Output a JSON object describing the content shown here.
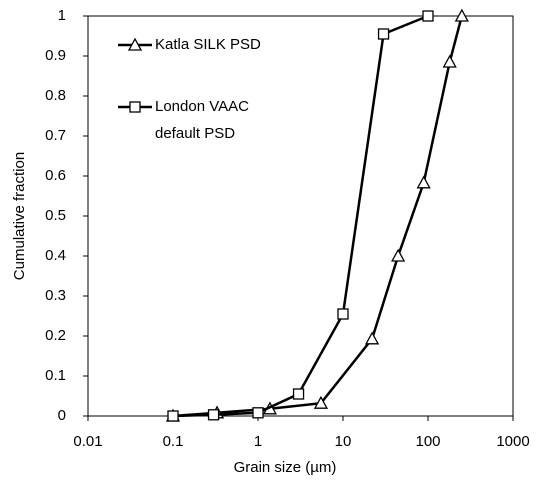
{
  "chart_data": {
    "type": "line",
    "x_label": "Grain size (µm)",
    "y_label": "Cumulative fraction",
    "xscale": "log",
    "xlim": [
      0.01,
      1000
    ],
    "xticks": [
      0.01,
      0.1,
      1,
      10,
      100,
      1000
    ],
    "ylim": [
      0,
      1
    ],
    "yticks": [
      0,
      0.1,
      0.2,
      0.3,
      0.4,
      0.5,
      0.6,
      0.7,
      0.8,
      0.9,
      1
    ],
    "grid": false,
    "legend": "upper left",
    "series": [
      {
        "name": "Katla SILK PSD",
        "color": "#000000",
        "marker": "triangle",
        "x": [
          0.1,
          0.33,
          1.38,
          5.5,
          22,
          44.5,
          89,
          180,
          250
        ],
        "values": [
          0,
          0.008,
          0.018,
          0.032,
          0.193,
          0.4,
          0.583,
          0.885,
          1
        ]
      },
      {
        "name": "London VAAC default PSD",
        "color": "#000000",
        "marker": "square",
        "x": [
          0.1,
          0.3,
          1,
          3,
          10,
          30,
          100
        ],
        "values": [
          0,
          0.003,
          0.008,
          0.055,
          0.255,
          0.955,
          1
        ]
      }
    ]
  }
}
